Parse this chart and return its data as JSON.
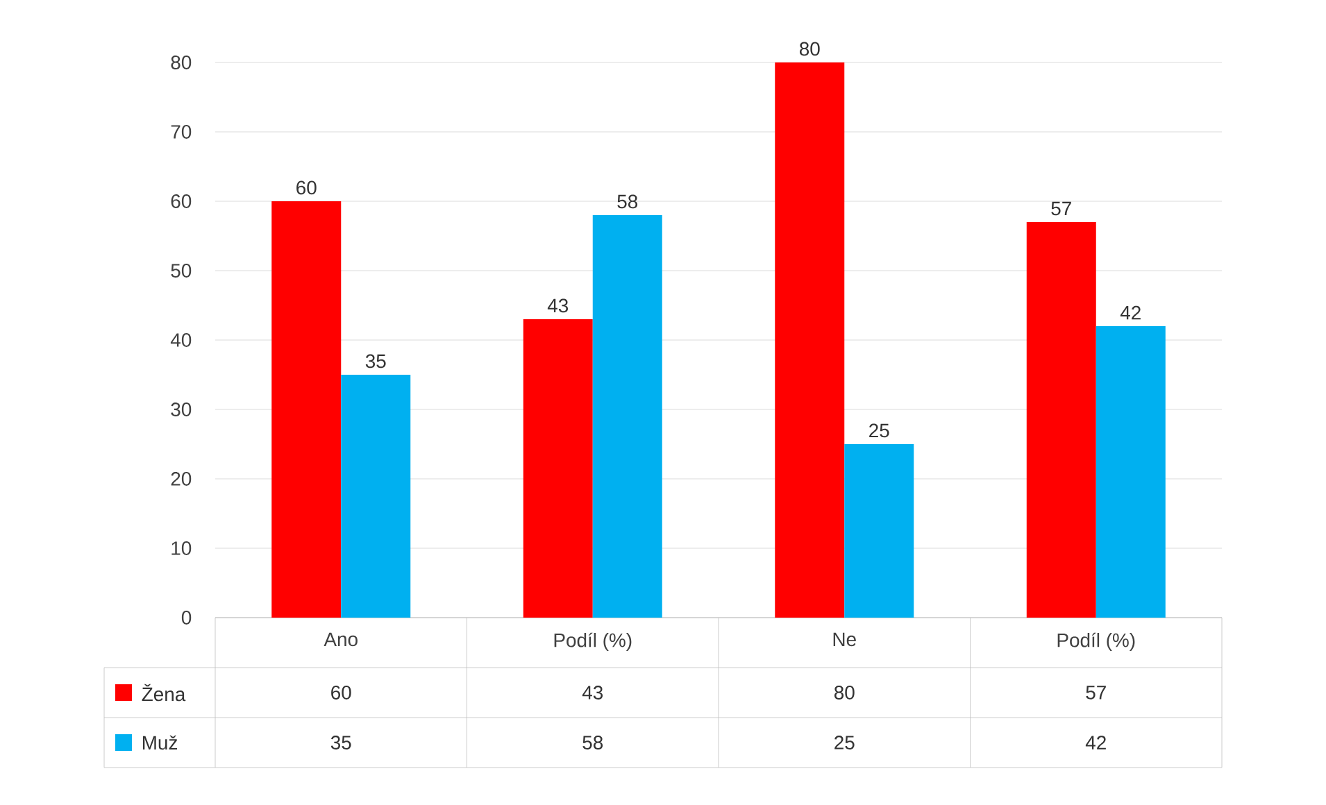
{
  "chart_data": {
    "type": "bar",
    "categories": [
      "Ano",
      "Podíl (%)",
      "Ne",
      "Podíl (%)"
    ],
    "series": [
      {
        "name": "Žena",
        "color": "#ff0000",
        "values": [
          60,
          43,
          80,
          57
        ],
        "value_labels": [
          "60",
          "43",
          "80",
          "57"
        ]
      },
      {
        "name": "Muž",
        "color": "#00b0f0",
        "values": [
          35,
          58,
          25,
          42
        ],
        "value_labels": [
          "35",
          "58",
          "25",
          "42"
        ]
      }
    ],
    "ylim": [
      0,
      80
    ],
    "yticks": [
      0,
      10,
      20,
      30,
      40,
      50,
      60,
      70,
      80
    ],
    "grid": "y",
    "legend": "bottom",
    "data_labels": true
  }
}
